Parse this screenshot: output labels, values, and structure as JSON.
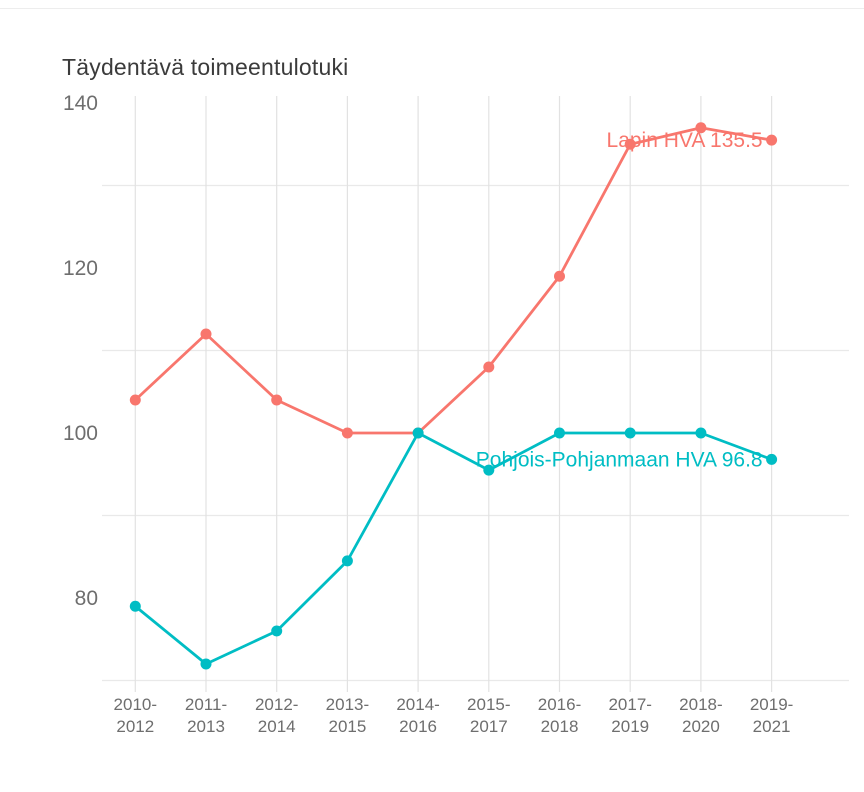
{
  "chart_data": {
    "type": "line",
    "title": "Täydentävä toimeentulotuki",
    "categories": [
      "2010-2012",
      "2011-2013",
      "2012-2014",
      "2013-2015",
      "2014-2016",
      "2015-2017",
      "2016-2018",
      "2017-2019",
      "2018-2020",
      "2019-2021"
    ],
    "series": [
      {
        "name": "Lapin HVA",
        "end_label": "Lapin HVA 135.5",
        "color": "#f8766d",
        "values": [
          104,
          112,
          104,
          100,
          100,
          108,
          119,
          135,
          137,
          135.5
        ]
      },
      {
        "name": "Pohjois-Pohjanmaan HVA",
        "end_label": "Pohjois-Pohjanmaan HVA 96.8",
        "color": "#00bdc4",
        "values": [
          79,
          72,
          76,
          84.5,
          100,
          95.5,
          100,
          100,
          100,
          96.8
        ]
      }
    ],
    "xlabel": "",
    "ylabel": "",
    "ylim": [
      68,
      141
    ],
    "yticks": [
      80,
      100,
      120,
      140
    ],
    "grid_y_values": [
      70,
      90,
      110,
      130
    ],
    "grid": "on",
    "legend_position": "inline-end-labels",
    "style": {
      "axis_label_color": "#6e6e6e",
      "v_grid_color": "#e2e2e2",
      "h_grid_color": "#e9e9e9",
      "title_color": "#3b3b3b",
      "background": "#ffffff"
    }
  }
}
